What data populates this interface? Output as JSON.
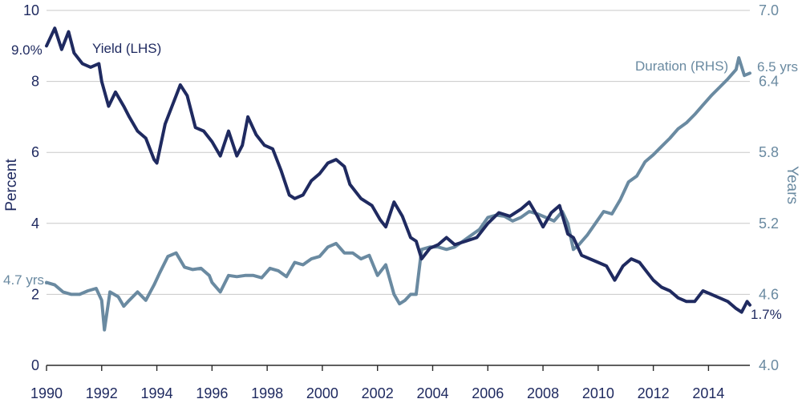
{
  "colors": {
    "yield": "#1f2a60",
    "duration": "#6a8aa1",
    "grid": "#c8c8c8",
    "axis_left_text": "#1f2a60",
    "axis_right_text": "#6a8aa1"
  },
  "chart_data": {
    "type": "line",
    "title": "",
    "xlabel": "",
    "ylabel_left": "Percent",
    "ylabel_right": "Years",
    "xlim": [
      1990.0,
      2015.5
    ],
    "ylim_left": [
      0,
      10
    ],
    "ylim_right": [
      4.0,
      7.0
    ],
    "grid": true,
    "x_ticks": [
      1990,
      1992,
      1994,
      1996,
      1998,
      2000,
      2002,
      2004,
      2006,
      2008,
      2010,
      2012,
      2014
    ],
    "x_tick_labels": [
      "1990",
      "1992",
      "1994",
      "1996",
      "1998",
      "2000",
      "2002",
      "2004",
      "2006",
      "2008",
      "2010",
      "2012",
      "2014"
    ],
    "y_left_ticks": [
      0,
      2,
      4,
      6,
      8,
      10
    ],
    "y_left_tick_labels": [
      "0",
      "2",
      "4",
      "6",
      "8",
      "10"
    ],
    "y_right_ticks": [
      4.0,
      4.6,
      5.2,
      5.8,
      6.4,
      7.0
    ],
    "y_right_tick_labels": [
      "4.0",
      "4.6",
      "5.2",
      "5.8",
      "6.4",
      "7.0"
    ],
    "series": [
      {
        "name": "Yield (LHS)",
        "axis": "left",
        "x": [
          1990.0,
          1990.3,
          1990.55,
          1990.8,
          1991.0,
          1991.3,
          1991.6,
          1991.9,
          1992.0,
          1992.25,
          1992.5,
          1992.8,
          1993.0,
          1993.3,
          1993.6,
          1993.9,
          1994.0,
          1994.3,
          1994.6,
          1994.85,
          1995.1,
          1995.4,
          1995.7,
          1996.0,
          1996.3,
          1996.6,
          1996.9,
          1997.1,
          1997.3,
          1997.6,
          1997.9,
          1998.2,
          1998.5,
          1998.8,
          1999.0,
          1999.3,
          1999.6,
          1999.9,
          2000.2,
          2000.5,
          2000.8,
          2001.0,
          2001.4,
          2001.8,
          2002.1,
          2002.3,
          2002.6,
          2002.9,
          2003.2,
          2003.4,
          2003.6,
          2003.9,
          2004.2,
          2004.5,
          2004.8,
          2005.2,
          2005.6,
          2006.0,
          2006.4,
          2006.8,
          2007.2,
          2007.5,
          2007.8,
          2008.0,
          2008.3,
          2008.6,
          2008.9,
          2009.1,
          2009.4,
          2009.7,
          2010.0,
          2010.3,
          2010.6,
          2010.9,
          2011.2,
          2011.5,
          2011.8,
          2012.0,
          2012.3,
          2012.6,
          2012.9,
          2013.2,
          2013.5,
          2013.8,
          2014.1,
          2014.4,
          2014.7,
          2015.0,
          2015.2,
          2015.4,
          2015.5
        ],
        "y": [
          9.0,
          9.5,
          8.9,
          9.4,
          8.8,
          8.5,
          8.4,
          8.5,
          8.0,
          7.3,
          7.7,
          7.3,
          7.0,
          6.6,
          6.4,
          5.8,
          5.7,
          6.8,
          7.4,
          7.9,
          7.6,
          6.7,
          6.6,
          6.3,
          5.9,
          6.6,
          5.9,
          6.2,
          7.0,
          6.5,
          6.2,
          6.1,
          5.5,
          4.8,
          4.7,
          4.8,
          5.2,
          5.4,
          5.7,
          5.8,
          5.6,
          5.1,
          4.7,
          4.5,
          4.1,
          3.9,
          4.6,
          4.2,
          3.6,
          3.5,
          3.0,
          3.3,
          3.4,
          3.6,
          3.4,
          3.5,
          3.6,
          4.0,
          4.3,
          4.2,
          4.4,
          4.6,
          4.2,
          3.9,
          4.3,
          4.5,
          3.7,
          3.6,
          3.1,
          3.0,
          2.9,
          2.8,
          2.4,
          2.8,
          3.0,
          2.9,
          2.6,
          2.4,
          2.2,
          2.1,
          1.9,
          1.8,
          1.8,
          2.1,
          2.0,
          1.9,
          1.8,
          1.6,
          1.5,
          1.8,
          1.7
        ]
      },
      {
        "name": "Duration (RHS)",
        "axis": "right",
        "x": [
          1990.0,
          1990.3,
          1990.6,
          1990.9,
          1991.2,
          1991.5,
          1991.8,
          1992.0,
          1992.1,
          1992.3,
          1992.6,
          1992.8,
          1993.0,
          1993.3,
          1993.6,
          1993.9,
          1994.1,
          1994.4,
          1994.7,
          1995.0,
          1995.3,
          1995.6,
          1995.9,
          1996.0,
          1996.3,
          1996.6,
          1996.9,
          1997.2,
          1997.5,
          1997.8,
          1998.1,
          1998.4,
          1998.7,
          1999.0,
          1999.3,
          1999.6,
          1999.9,
          2000.2,
          2000.5,
          2000.8,
          2001.1,
          2001.4,
          2001.7,
          2002.0,
          2002.3,
          2002.6,
          2002.8,
          2003.0,
          2003.2,
          2003.4,
          2003.6,
          2003.9,
          2004.2,
          2004.5,
          2004.8,
          2005.1,
          2005.4,
          2005.7,
          2006.0,
          2006.3,
          2006.6,
          2006.9,
          2007.2,
          2007.5,
          2007.8,
          2008.1,
          2008.4,
          2008.7,
          2008.9,
          2009.1,
          2009.3,
          2009.6,
          2009.9,
          2010.2,
          2010.5,
          2010.8,
          2011.1,
          2011.4,
          2011.7,
          2012.0,
          2012.3,
          2012.6,
          2012.9,
          2013.2,
          2013.5,
          2013.8,
          2014.1,
          2014.4,
          2014.7,
          2015.0,
          2015.1,
          2015.3,
          2015.5
        ],
        "y": [
          4.7,
          4.68,
          4.62,
          4.6,
          4.6,
          4.63,
          4.65,
          4.55,
          4.3,
          4.62,
          4.58,
          4.5,
          4.55,
          4.62,
          4.55,
          4.68,
          4.78,
          4.92,
          4.95,
          4.83,
          4.81,
          4.82,
          4.76,
          4.7,
          4.62,
          4.76,
          4.75,
          4.76,
          4.76,
          4.74,
          4.82,
          4.8,
          4.75,
          4.87,
          4.85,
          4.9,
          4.92,
          5.0,
          5.03,
          4.95,
          4.95,
          4.9,
          4.93,
          4.76,
          4.85,
          4.6,
          4.52,
          4.55,
          4.6,
          4.6,
          4.98,
          5.0,
          5.0,
          4.98,
          5.0,
          5.05,
          5.1,
          5.15,
          5.25,
          5.27,
          5.26,
          5.22,
          5.25,
          5.3,
          5.28,
          5.25,
          5.22,
          5.3,
          5.2,
          4.98,
          5.02,
          5.1,
          5.2,
          5.3,
          5.28,
          5.4,
          5.55,
          5.6,
          5.72,
          5.78,
          5.85,
          5.92,
          6.0,
          6.05,
          6.12,
          6.2,
          6.28,
          6.35,
          6.42,
          6.5,
          6.6,
          6.45,
          6.47
        ]
      }
    ],
    "annotations": [
      {
        "text": "9.0%",
        "series": "Yield (LHS)"
      },
      {
        "text": "Yield (LHS)",
        "series": "Yield (LHS)"
      },
      {
        "text": "1.7%",
        "series": "Yield (LHS)"
      },
      {
        "text": "4.7 yrs.",
        "series": "Duration (RHS)"
      },
      {
        "text": "Duration (RHS)",
        "series": "Duration (RHS)"
      },
      {
        "text": "6.5 yrs",
        "series": "Duration (RHS)"
      }
    ]
  }
}
